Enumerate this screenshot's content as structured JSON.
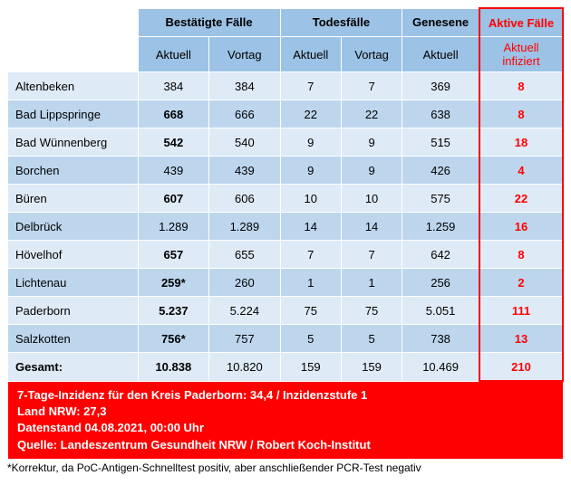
{
  "colors": {
    "header_bg": "#9cc2e5",
    "row_light": "#deeaf6",
    "row_dark": "#bdd6ee",
    "active_red": "#ff0000",
    "text": "#000000"
  },
  "headers": {
    "confirmed": "Bestätigte Fälle",
    "deaths": "Todesfälle",
    "recovered": "Genesene",
    "active": "Aktive Fälle",
    "current": "Aktuell",
    "prev": "Vortag",
    "active_sub": "Aktuell infiziert"
  },
  "col_widths": {
    "label": 128,
    "conf_cur": 70,
    "conf_prev": 70,
    "death_cur": 60,
    "death_prev": 60,
    "rec_cur": 76,
    "active": 82
  },
  "rows": [
    {
      "name": "Altenbeken",
      "conf_cur": "384",
      "conf_prev": "384",
      "death_cur": "7",
      "death_prev": "7",
      "rec": "369",
      "active": "8",
      "bold_cur": false
    },
    {
      "name": "Bad Lippspringe",
      "conf_cur": "668",
      "conf_prev": "666",
      "death_cur": "22",
      "death_prev": "22",
      "rec": "638",
      "active": "8",
      "bold_cur": true
    },
    {
      "name": "Bad Wünnenberg",
      "conf_cur": "542",
      "conf_prev": "540",
      "death_cur": "9",
      "death_prev": "9",
      "rec": "515",
      "active": "18",
      "bold_cur": true
    },
    {
      "name": "Borchen",
      "conf_cur": "439",
      "conf_prev": "439",
      "death_cur": "9",
      "death_prev": "9",
      "rec": "426",
      "active": "4",
      "bold_cur": false
    },
    {
      "name": "Büren",
      "conf_cur": "607",
      "conf_prev": "606",
      "death_cur": "10",
      "death_prev": "10",
      "rec": "575",
      "active": "22",
      "bold_cur": true
    },
    {
      "name": "Delbrück",
      "conf_cur": "1.289",
      "conf_prev": "1.289",
      "death_cur": "14",
      "death_prev": "14",
      "rec": "1.259",
      "active": "16",
      "bold_cur": false
    },
    {
      "name": "Hövelhof",
      "conf_cur": "657",
      "conf_prev": "655",
      "death_cur": "7",
      "death_prev": "7",
      "rec": "642",
      "active": "8",
      "bold_cur": true
    },
    {
      "name": "Lichtenau",
      "conf_cur": "259*",
      "conf_prev": "260",
      "death_cur": "1",
      "death_prev": "1",
      "rec": "256",
      "active": "2",
      "bold_cur": true
    },
    {
      "name": "Paderborn",
      "conf_cur": "5.237",
      "conf_prev": "5.224",
      "death_cur": "75",
      "death_prev": "75",
      "rec": "5.051",
      "active": "111",
      "bold_cur": true
    },
    {
      "name": "Salzkotten",
      "conf_cur": "756*",
      "conf_prev": "757",
      "death_cur": "5",
      "death_prev": "5",
      "rec": "738",
      "active": "13",
      "bold_cur": true
    }
  ],
  "total": {
    "name": "Gesamt:",
    "conf_cur": "10.838",
    "conf_prev": "10.820",
    "death_cur": "159",
    "death_prev": "159",
    "rec": "10.469",
    "active": "210"
  },
  "footer": {
    "line1": "7-Tage-Inzidenz für den Kreis Paderborn: 34,4 / Inzidenzstufe 1",
    "line2": "Land NRW: 27,3",
    "line3": "Datenstand 04.08.2021, 00:00 Uhr",
    "line4": "Quelle: Landeszentrum Gesundheit NRW / Robert Koch-Institut"
  },
  "footnote": "*Korrektur, da PoC-Antigen-Schnelltest positiv, aber anschließender PCR-Test negativ"
}
